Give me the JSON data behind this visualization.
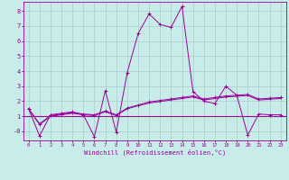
{
  "xlabel": "Windchill (Refroidissement éolien,°C)",
  "background_color": "#c8ece9",
  "grid_color": "#aacccc",
  "line_color": "#990099",
  "xlim": [
    -0.5,
    23.5
  ],
  "ylim": [
    -0.6,
    8.6
  ],
  "xticks": [
    0,
    1,
    2,
    3,
    4,
    5,
    6,
    7,
    8,
    9,
    10,
    11,
    12,
    13,
    14,
    15,
    16,
    17,
    18,
    19,
    20,
    21,
    22,
    23
  ],
  "yticks": [
    0,
    1,
    2,
    3,
    4,
    5,
    6,
    7,
    8
  ],
  "ytick_labels": [
    "-0",
    "1",
    "2",
    "3",
    "4",
    "5",
    "6",
    "7",
    "8"
  ],
  "series1_x": [
    0,
    1,
    2,
    3,
    4,
    5,
    6,
    7,
    8,
    9,
    10,
    11,
    12,
    13,
    14,
    15,
    16,
    17,
    18,
    19,
    20,
    21,
    22,
    23
  ],
  "series1_y": [
    1.5,
    -0.3,
    1.1,
    1.2,
    1.3,
    1.1,
    -0.35,
    2.7,
    -0.05,
    3.9,
    6.5,
    7.8,
    7.1,
    6.9,
    8.3,
    2.65,
    2.0,
    1.85,
    3.0,
    2.4,
    -0.25,
    1.15,
    1.1,
    1.1
  ],
  "series2_x": [
    0,
    1,
    2,
    3,
    4,
    5,
    6,
    7,
    8,
    9,
    10,
    11,
    12,
    13,
    14,
    15,
    16,
    17,
    18,
    19,
    20,
    21,
    22,
    23
  ],
  "series2_y": [
    1.5,
    0.5,
    1.05,
    1.15,
    1.25,
    1.15,
    1.1,
    1.35,
    1.1,
    1.55,
    1.75,
    1.95,
    2.05,
    2.15,
    2.25,
    2.35,
    2.15,
    2.25,
    2.35,
    2.4,
    2.45,
    2.15,
    2.2,
    2.25
  ],
  "series3_x": [
    0,
    1,
    2,
    3,
    4,
    5,
    6,
    7,
    8,
    9,
    10,
    11,
    12,
    13,
    14,
    15,
    16,
    17,
    18,
    19,
    20,
    21,
    22,
    23
  ],
  "series3_y": [
    1.5,
    0.45,
    1.0,
    1.1,
    1.2,
    1.1,
    1.05,
    1.3,
    1.05,
    1.5,
    1.7,
    1.88,
    1.98,
    2.08,
    2.18,
    2.28,
    2.08,
    2.18,
    2.28,
    2.33,
    2.38,
    2.08,
    2.13,
    2.18
  ],
  "hline_y": 1.0,
  "marker": "+"
}
